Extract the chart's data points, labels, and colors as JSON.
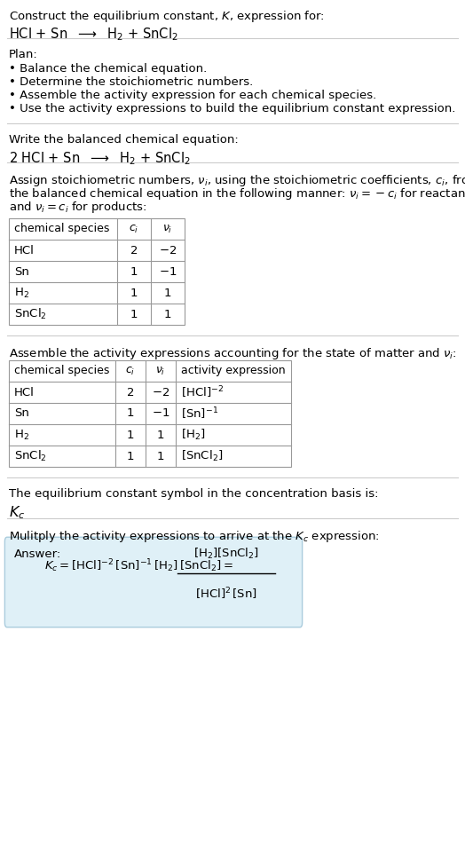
{
  "title_line1": "Construct the equilibrium constant, $K$, expression for:",
  "title_line2": "HCl + Sn  $\\longrightarrow$  H$_2$ + SnCl$_2$",
  "plan_header": "Plan:",
  "plan_bullets": [
    "• Balance the chemical equation.",
    "• Determine the stoichiometric numbers.",
    "• Assemble the activity expression for each chemical species.",
    "• Use the activity expressions to build the equilibrium constant expression."
  ],
  "balanced_header": "Write the balanced chemical equation:",
  "balanced_eq": "2 HCl + Sn  $\\longrightarrow$  H$_2$ + SnCl$_2$",
  "stoich_intro_lines": [
    "Assign stoichiometric numbers, $\\nu_i$, using the stoichiometric coefficients, $c_i$, from",
    "the balanced chemical equation in the following manner: $\\nu_i = -c_i$ for reactants",
    "and $\\nu_i = c_i$ for products:"
  ],
  "table1_headers": [
    "chemical species",
    "$c_i$",
    "$\\nu_i$"
  ],
  "table1_rows": [
    [
      "HCl",
      "2",
      "$-2$"
    ],
    [
      "Sn",
      "1",
      "$-1$"
    ],
    [
      "H$_2$",
      "1",
      "1"
    ],
    [
      "SnCl$_2$",
      "1",
      "1"
    ]
  ],
  "assemble_header": "Assemble the activity expressions accounting for the state of matter and $\\nu_i$:",
  "table2_headers": [
    "chemical species",
    "$c_i$",
    "$\\nu_i$",
    "activity expression"
  ],
  "table2_rows": [
    [
      "HCl",
      "2",
      "$-2$",
      "$[\\mathrm{HCl}]^{-2}$"
    ],
    [
      "Sn",
      "1",
      "$-1$",
      "$[\\mathrm{Sn}]^{-1}$"
    ],
    [
      "H$_2$",
      "1",
      "1",
      "$[\\mathrm{H_2}]$"
    ],
    [
      "SnCl$_2$",
      "1",
      "1",
      "$[\\mathrm{SnCl_2}]$"
    ]
  ],
  "kc_symbol_text": "The equilibrium constant symbol in the concentration basis is:",
  "kc_symbol": "$K_c$",
  "multiply_text": "Mulitply the activity expressions to arrive at the $K_c$ expression:",
  "answer_label": "Answer:",
  "kc_lhs": "$K_c = [\\mathrm{HCl}]^{-2}\\,[\\mathrm{Sn}]^{-1}\\,[\\mathrm{H_2}]\\,[\\mathrm{SnCl_2}] = $",
  "kc_fraction_num": "$[\\mathrm{H_2}][\\mathrm{SnCl_2}]$",
  "kc_fraction_den": "$[\\mathrm{HCl}]^2\\,[\\mathrm{Sn}]$",
  "bg_color": "#ffffff",
  "answer_box_color": "#dff0f7",
  "table_border_color": "#999999",
  "text_color": "#000000",
  "separator_color": "#cccccc"
}
